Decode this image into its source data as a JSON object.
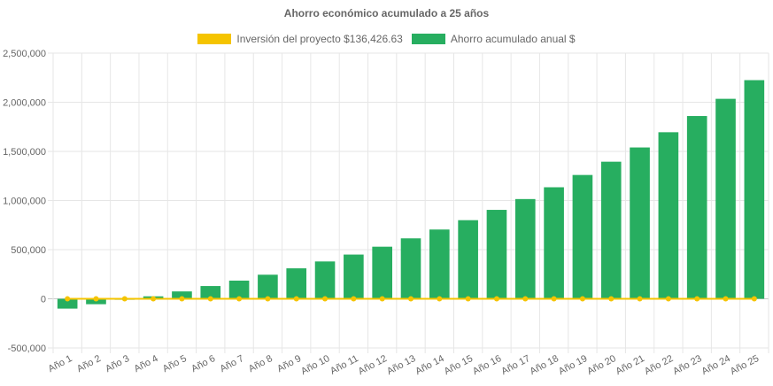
{
  "chart_data": {
    "type": "bar",
    "title": "Ahorro económico acumulado a 25 años",
    "categories": [
      "Año 1",
      "Año 2",
      "Año 3",
      "Año 4",
      "Año 5",
      "Año 6",
      "Año 7",
      "Año 8",
      "Año 9",
      "Año 10",
      "Año 11",
      "Año 12",
      "Año 13",
      "Año 14",
      "Año 15",
      "Año 16",
      "Año 17",
      "Año 18",
      "Año 19",
      "Año 20",
      "Año 21",
      "Año 22",
      "Año 23",
      "Año 24",
      "Año 25"
    ],
    "series": [
      {
        "name": "Inversión del proyecto $136,426.63",
        "type": "line",
        "color": "#f5c400",
        "values": [
          0,
          0,
          0,
          0,
          0,
          0,
          0,
          0,
          0,
          0,
          0,
          0,
          0,
          0,
          0,
          0,
          0,
          0,
          0,
          0,
          0,
          0,
          0,
          0,
          0
        ]
      },
      {
        "name": "Ahorro acumulado anual $",
        "type": "bar",
        "color": "#27ae60",
        "values": [
          -100000,
          -55000,
          -10000,
          25000,
          75000,
          130000,
          185000,
          245000,
          310000,
          380000,
          450000,
          530000,
          615000,
          705000,
          800000,
          905000,
          1015000,
          1135000,
          1260000,
          1395000,
          1540000,
          1695000,
          1860000,
          2035000,
          2225000
        ]
      }
    ],
    "ylim": [
      -500000,
      2500000
    ],
    "y_ticks": [
      "2,500,000",
      "2,000,000",
      "1,500,000",
      "1,000,000",
      "500,000",
      "0",
      "-500,000"
    ],
    "y_tick_values": [
      2500000,
      2000000,
      1500000,
      1000000,
      500000,
      0,
      -500000
    ],
    "grid": true,
    "legend_position": "top"
  }
}
